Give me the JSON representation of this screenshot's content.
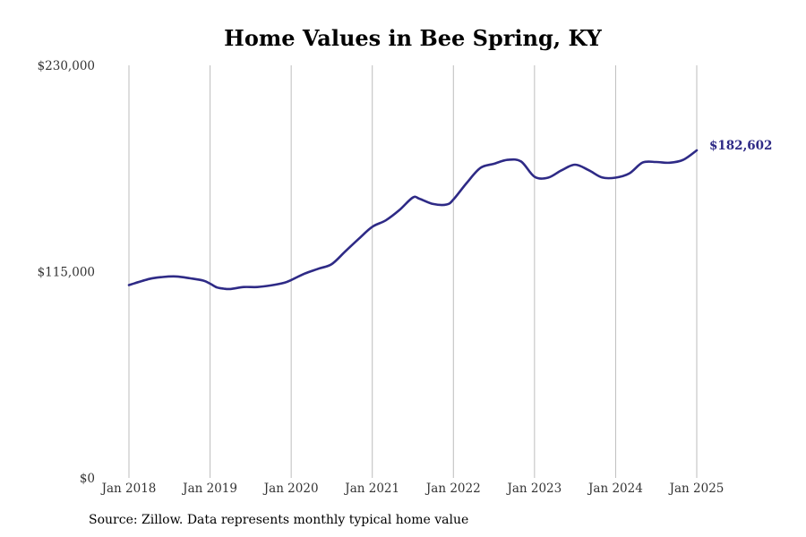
{
  "chart_data": {
    "type": "line",
    "title": "Home Values in Bee Spring, KY",
    "xlabel": "",
    "ylabel": "",
    "ylim": [
      0,
      230000
    ],
    "yticks": [
      0,
      115000,
      230000
    ],
    "ytick_labels": [
      "$0",
      "$115,000",
      "$230,000"
    ],
    "xlim": [
      "2018-01",
      "2025-01"
    ],
    "xticks": [
      "2018-01",
      "2019-01",
      "2020-01",
      "2021-01",
      "2022-01",
      "2023-01",
      "2024-01",
      "2025-01"
    ],
    "xtick_labels": [
      "Jan 2018",
      "Jan 2019",
      "Jan 2020",
      "Jan 2021",
      "Jan 2022",
      "Jan 2023",
      "Jan 2024",
      "Jan 2025"
    ],
    "grid": "vertical",
    "series_color": "#2e2a86",
    "end_label": "$182,602",
    "series": [
      {
        "x": [
          "2018-01",
          "2018-04",
          "2018-06",
          "2018-08",
          "2018-10",
          "2018-12",
          "2019-01",
          "2019-02",
          "2019-03",
          "2019-04",
          "2019-06",
          "2019-08",
          "2019-10",
          "2019-12",
          "2020-01",
          "2020-03",
          "2020-05",
          "2020-07",
          "2020-09",
          "2020-11",
          "2021-01",
          "2021-03",
          "2021-05",
          "2021-07",
          "2021-08",
          "2021-10",
          "2021-12",
          "2022-01",
          "2022-03",
          "2022-05",
          "2022-07",
          "2022-09",
          "2022-11",
          "2023-01",
          "2023-03",
          "2023-05",
          "2023-07",
          "2023-09",
          "2023-11",
          "2024-01",
          "2024-03",
          "2024-05",
          "2024-07",
          "2024-09",
          "2024-11",
          "2025-01"
        ],
        "y": [
          107500,
          110900,
          112000,
          112300,
          111300,
          110000,
          108300,
          106200,
          105500,
          105300,
          106400,
          106400,
          107300,
          108800,
          110300,
          113900,
          116600,
          119200,
          126300,
          133300,
          140000,
          143600,
          149300,
          156300,
          155600,
          152700,
          152400,
          155200,
          164600,
          172800,
          175100,
          177300,
          176400,
          167900,
          167400,
          171500,
          174600,
          171600,
          167500,
          167400,
          169700,
          175800,
          176100,
          175700,
          177300,
          182602
        ]
      }
    ]
  },
  "footer": {
    "source": "Source: Zillow. Data represents monthly typical home value"
  }
}
